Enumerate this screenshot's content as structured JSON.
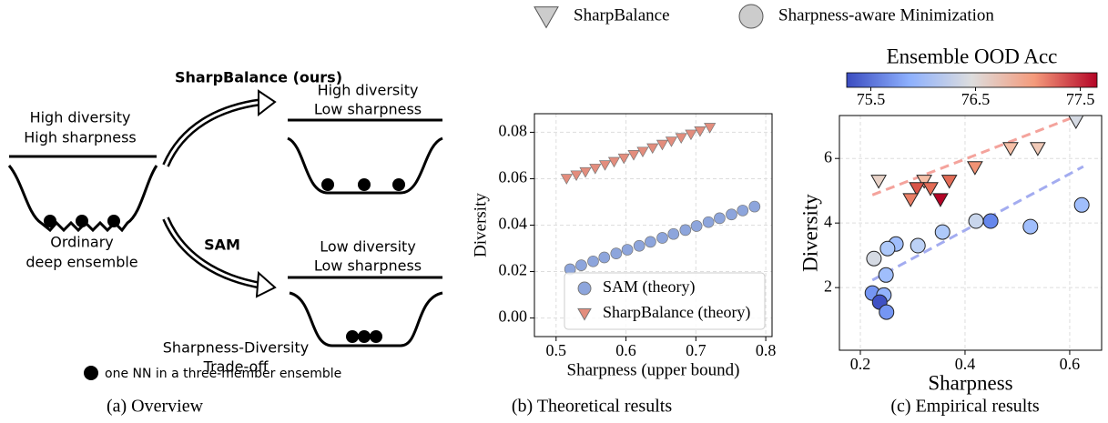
{
  "overview": {
    "labels": [
      "SharpBalance (ours)",
      "High diversity",
      "High sharpness",
      "High diversity",
      "Low sharpness",
      "Ordinary",
      "deep ensemble",
      "SAM",
      "Low diversity",
      "Low sharpness",
      "Sharpness-Diversity",
      "Trade-off",
      "one NN in a three-member ensemble"
    ]
  },
  "captions": [
    "(a) Overview",
    "(b) Theoretical results",
    "(c) Empirical results"
  ],
  "chart_data": [
    {
      "type": "scatter",
      "xlabel": "Sharpness (upper bound)",
      "ylabel": "Diversity",
      "xlim": [
        0.469,
        0.809
      ],
      "ylim": [
        -0.008,
        0.088
      ],
      "xticks": [
        0.5,
        0.6,
        0.7,
        0.8
      ],
      "yticks": [
        {
          "value": 0,
          "label": "0.00"
        },
        0.02,
        0.04,
        0.06,
        0.08
      ],
      "grid": true,
      "legend": "lower right",
      "series": [
        {
          "name": "SAM (theory)",
          "color": "#8da5dc",
          "marker": "o",
          "x": [
            0.52,
            0.536,
            0.553,
            0.569,
            0.586,
            0.602,
            0.619,
            0.635,
            0.652,
            0.668,
            0.685,
            0.701,
            0.718,
            0.734,
            0.751,
            0.767,
            0.784
          ],
          "values": [
            0.021,
            0.0227,
            0.0244,
            0.0261,
            0.0278,
            0.0294,
            0.0311,
            0.0328,
            0.0345,
            0.0362,
            0.0379,
            0.0396,
            0.0413,
            0.043,
            0.0446,
            0.0463,
            0.048
          ]
        },
        {
          "name": "SharpBalance (theory)",
          "color": "#e38d7d",
          "marker": "v",
          "x": [
            0.515,
            0.529,
            0.542,
            0.556,
            0.57,
            0.583,
            0.597,
            0.611,
            0.624,
            0.638,
            0.652,
            0.665,
            0.679,
            0.693,
            0.706,
            0.72
          ],
          "values": [
            0.06,
            0.0615,
            0.0629,
            0.0644,
            0.0659,
            0.0673,
            0.0688,
            0.0703,
            0.0717,
            0.0732,
            0.0747,
            0.0761,
            0.0776,
            0.0791,
            0.0805,
            0.082
          ]
        }
      ]
    },
    {
      "type": "scatter",
      "xlabel": "Sharpness",
      "ylabel": "Diversity",
      "xlim": [
        0.16,
        0.661
      ],
      "ylim": [
        0.06,
        7.33
      ],
      "xticks": [
        0.2,
        0.4,
        0.6
      ],
      "yticks": [
        2,
        4,
        6
      ],
      "grid": true,
      "legend": "upper center",
      "cmap": "coolwarm",
      "colorbar": {
        "label": "Ensemble OOD Acc",
        "lim": [
          75.27,
          77.66
        ],
        "ticks": [
          75.5,
          76.5,
          77.5
        ]
      },
      "series": [
        {
          "name": "SharpBalance",
          "color": "#cccccc",
          "marker": "v",
          "x": [
            0.612,
            0.539,
            0.487,
            0.419,
            0.37,
            0.322,
            0.308,
            0.334,
            0.353,
            0.296,
            0.235
          ],
          "values": [
            7.15,
            6.31,
            6.31,
            5.72,
            5.3,
            5.3,
            5.07,
            5.07,
            4.73,
            4.73,
            5.3
          ],
          "color_values": [
            76.4,
            76.7,
            76.8,
            77.1,
            77.3,
            76.8,
            77.4,
            77.3,
            77.7,
            77.2,
            76.6
          ]
        },
        {
          "name": "Sharpness-aware Minimization",
          "color": "#cccccc",
          "marker": "o",
          "x": [
            0.623,
            0.525,
            0.449,
            0.421,
            0.357,
            0.31,
            0.268,
            0.252,
            0.226,
            0.249,
            0.223,
            0.245,
            0.237,
            0.25
          ],
          "values": [
            4.56,
            3.89,
            4.06,
            4.06,
            3.72,
            3.3,
            3.35,
            3.21,
            2.9,
            2.39,
            1.83,
            1.77,
            1.55,
            1.24
          ],
          "color_values": [
            76.0,
            76.0,
            75.6,
            76.3,
            76.1,
            76.2,
            76.0,
            76.1,
            76.4,
            76.0,
            75.7,
            75.9,
            75.3,
            75.7
          ]
        }
      ],
      "fits": [
        {
          "color": "#f4a39c",
          "x": [
            0.223,
            0.609
          ],
          "y": [
            4.87,
            7.29
          ]
        },
        {
          "color": "#a3acf0",
          "x": [
            0.223,
            0.626
          ],
          "y": [
            2.23,
            5.75
          ]
        }
      ]
    }
  ]
}
